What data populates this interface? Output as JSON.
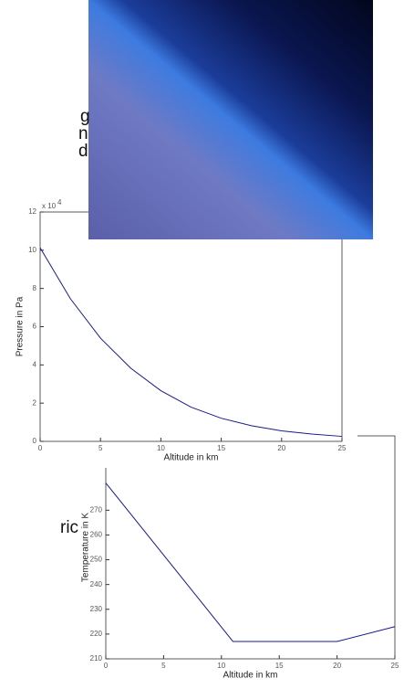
{
  "chart_data": [
    {
      "type": "line",
      "xlabel": "Altitude in km",
      "ylabel": "Pressure in Pa",
      "y_scale_label": "x 10",
      "y_scale_exponent": "4",
      "x": [
        0,
        2.5,
        5,
        7.5,
        10,
        12.5,
        15,
        17.5,
        20,
        22.5,
        25
      ],
      "values": [
        10.13,
        7.47,
        5.4,
        3.83,
        2.65,
        1.79,
        1.21,
        0.82,
        0.55,
        0.38,
        0.26
      ],
      "color": "#1a1a8c",
      "xlim": [
        0,
        25
      ],
      "ylim": [
        0,
        12
      ],
      "xticks": [
        0,
        5,
        10,
        15,
        20,
        25
      ],
      "yticks": [
        0,
        2,
        4,
        6,
        8,
        10,
        12
      ]
    },
    {
      "type": "line",
      "xlabel": "Altitude in km",
      "ylabel": "Temperature in K",
      "x": [
        0,
        11,
        20,
        25
      ],
      "values": [
        281,
        217,
        217,
        223
      ],
      "color": "#1a1a8c",
      "xlim": [
        0,
        25
      ],
      "ylim": [
        210,
        300
      ],
      "xticks": [
        0,
        5,
        10,
        15,
        20,
        25
      ],
      "yticks": [
        210,
        220,
        230,
        240,
        250,
        260,
        270
      ]
    }
  ],
  "fragments": [
    "g",
    "n",
    "d",
    "ric"
  ]
}
